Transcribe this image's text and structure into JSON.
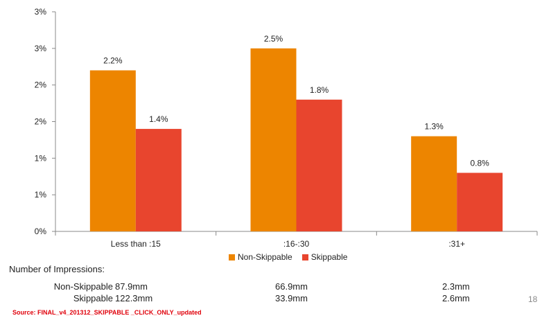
{
  "chart_data": {
    "type": "bar",
    "categories": [
      "Less than :15",
      ":16-:30",
      ":31+"
    ],
    "series": [
      {
        "name": "Non-Skippable",
        "color": "#ED8500",
        "values": [
          2.2,
          2.5,
          1.3
        ],
        "labels": [
          "2.2%",
          "2.5%",
          "1.3%"
        ]
      },
      {
        "name": "Skippable",
        "color": "#E8452E",
        "values": [
          1.4,
          1.8,
          0.8
        ],
        "labels": [
          "1.4%",
          "1.8%",
          "0.8%"
        ]
      }
    ],
    "ylim": [
      0,
      3
    ],
    "yticks": [
      0,
      0.5,
      1,
      1.5,
      2,
      2.5,
      3
    ],
    "ytick_labels": [
      "0%",
      "1%",
      "1%",
      "2%",
      "2%",
      "3%",
      "3%"
    ],
    "grid": false,
    "legend_position": "bottom"
  },
  "impressions": {
    "title": "Number of Impressions:",
    "rows": [
      {
        "label": "Non-Skippable",
        "values": [
          "87.9mm",
          "66.9mm",
          "2.3mm"
        ]
      },
      {
        "label": "Skippable",
        "values": [
          "122.3mm",
          "33.9mm",
          "2.6mm"
        ]
      }
    ]
  },
  "page_number": "18",
  "source": "Source: FINAL_v4_201312_SKIPPABLE _CLICK_ONLY_updated"
}
